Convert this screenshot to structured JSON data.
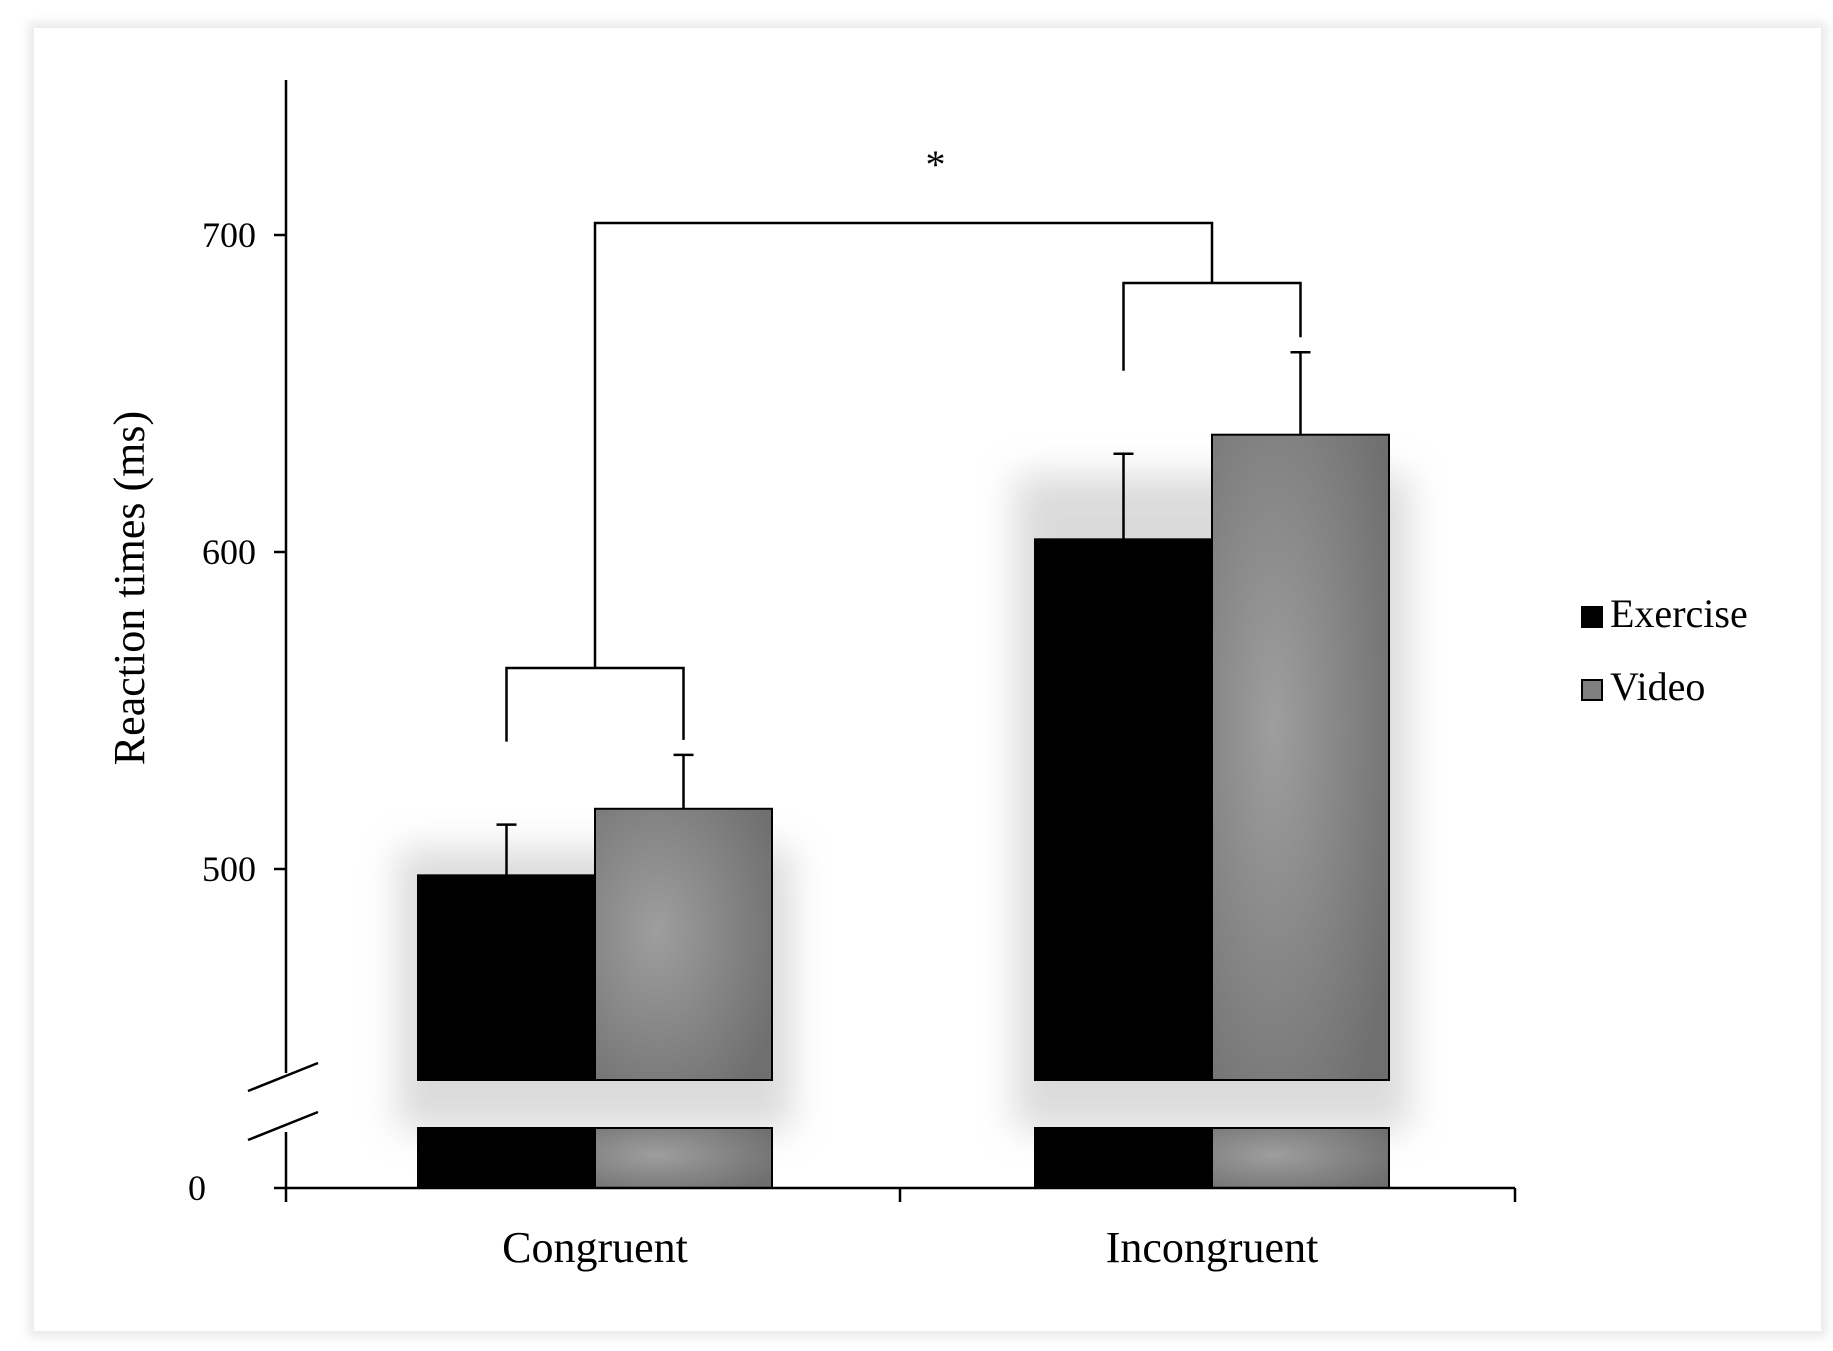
{
  "chart_data": {
    "type": "bar",
    "title": "",
    "xlabel": "",
    "ylabel": "Reaction times (ms)",
    "categories": [
      "Congruent",
      "Incongruent"
    ],
    "series": [
      {
        "name": "Exercise",
        "values": [
          498,
          604
        ],
        "errors": [
          16,
          27
        ]
      },
      {
        "name": "Video",
        "values": [
          519,
          637
        ],
        "errors": [
          17,
          26
        ]
      }
    ],
    "yticks": [
      0,
      500,
      600,
      700
    ],
    "ylim": [
      0,
      750
    ],
    "axis_break": true,
    "grid": false,
    "legend_position": "right",
    "significance": {
      "label": "*",
      "between": [
        "Congruent",
        "Incongruent"
      ]
    },
    "colors": {
      "Exercise": "#000000",
      "Video": "#8a8a8a"
    }
  }
}
